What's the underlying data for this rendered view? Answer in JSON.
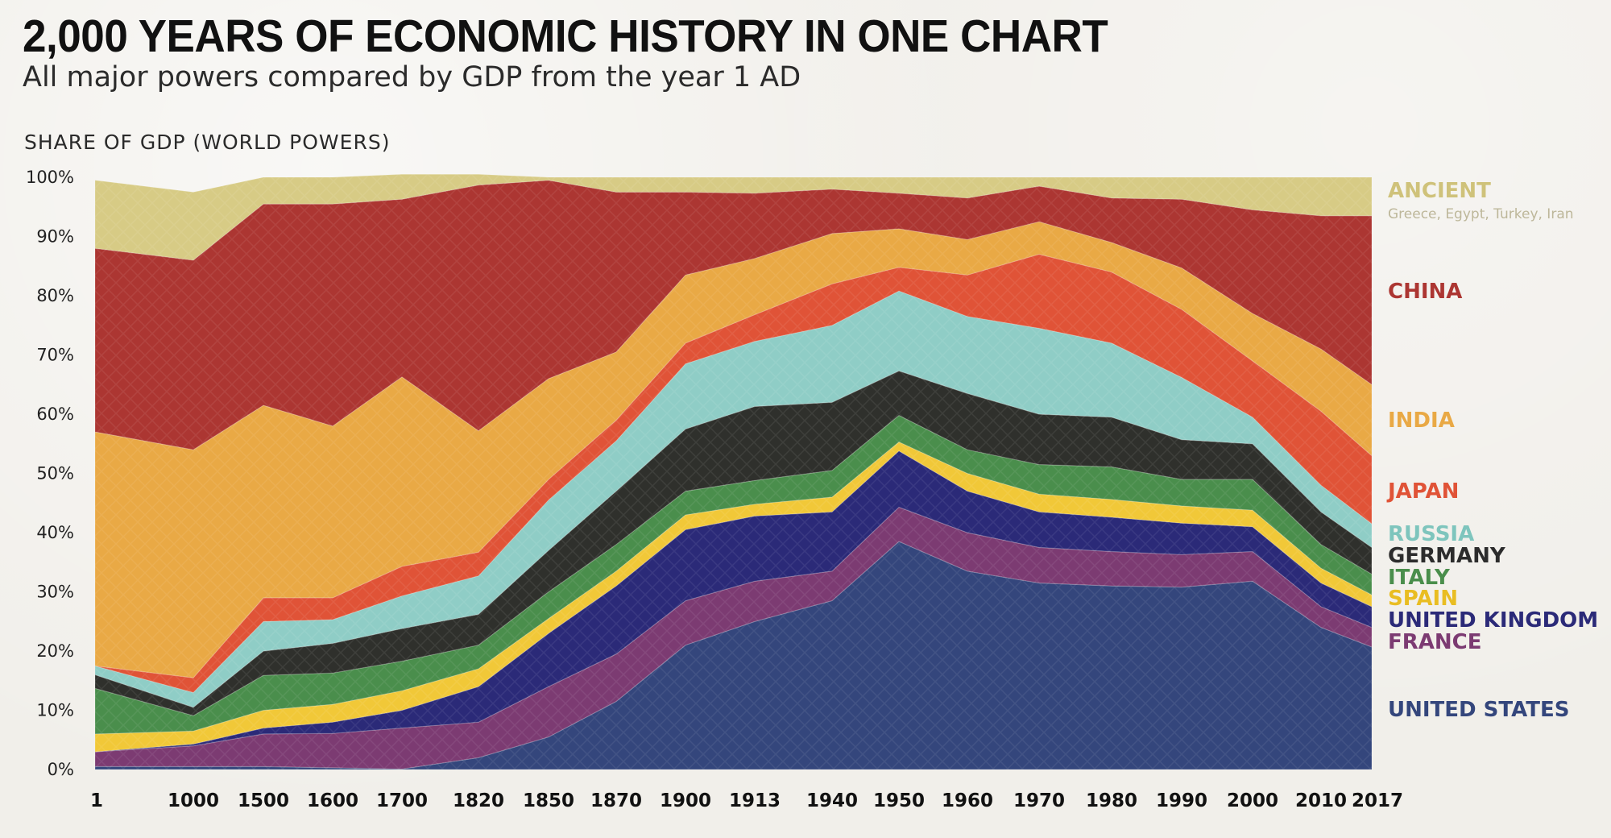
{
  "title": "2,000 YEARS OF ECONOMIC HISTORY IN ONE CHART",
  "subtitle": "All major powers compared by GDP from the year 1 AD",
  "chart_data": {
    "type": "area",
    "stacked": true,
    "ylabel": "SHARE OF GDP (WORLD POWERS)",
    "ylim": [
      0,
      100
    ],
    "y_ticks": [
      "0%",
      "10%",
      "20%",
      "30%",
      "40%",
      "50%",
      "60%",
      "70%",
      "80%",
      "90%",
      "100%"
    ],
    "categories": [
      "1",
      "1000",
      "1500",
      "1600",
      "1700",
      "1820",
      "1850",
      "1870",
      "1900",
      "1913",
      "1940",
      "1950",
      "1960",
      "1970",
      "1980",
      "1990",
      "2000",
      "2010",
      "2017"
    ],
    "grid": false,
    "legend_placement": "right",
    "series": [
      {
        "name": "UNITED STATES",
        "color": "#34467c",
        "values": [
          0.5,
          0.5,
          0.5,
          0.3,
          0.1,
          2.0,
          5.5,
          11.5,
          21.0,
          25.0,
          28.5,
          38.5,
          33.5,
          31.5,
          31.0,
          30.8,
          31.8,
          24.0,
          20.7
        ]
      },
      {
        "name": "FRANCE",
        "color": "#7c3b72",
        "values": [
          2.5,
          3.5,
          5.5,
          5.8,
          6.9,
          6.0,
          8.5,
          8.0,
          7.5,
          6.8,
          5.0,
          5.8,
          6.5,
          6.0,
          5.8,
          5.5,
          5.0,
          3.5,
          3.3
        ]
      },
      {
        "name": "UNITED KINGDOM",
        "color": "#2b2a78",
        "values": [
          0.0,
          0.3,
          1.0,
          1.9,
          3.0,
          6.0,
          9.0,
          11.5,
          12.0,
          11.0,
          10.0,
          9.5,
          7.0,
          6.0,
          5.8,
          5.3,
          4.2,
          4.0,
          3.5
        ]
      },
      {
        "name": "SPAIN",
        "color": "#f1c838",
        "values": [
          3.0,
          2.2,
          3.0,
          3.0,
          3.3,
          3.0,
          2.5,
          2.5,
          2.5,
          2.0,
          2.5,
          1.5,
          3.0,
          3.0,
          3.0,
          2.9,
          2.8,
          2.5,
          2.0
        ]
      },
      {
        "name": "ITALY",
        "color": "#4a8e4c",
        "values": [
          7.7,
          2.6,
          5.9,
          5.3,
          5.0,
          4.0,
          4.5,
          4.5,
          4.0,
          4.0,
          4.5,
          4.5,
          4.0,
          5.0,
          5.5,
          4.5,
          5.2,
          4.0,
          3.5
        ]
      },
      {
        "name": "GERMANY",
        "color": "#2f302c",
        "values": [
          2.3,
          1.4,
          4.1,
          5.0,
          5.5,
          5.2,
          7.0,
          9.0,
          10.5,
          12.5,
          11.5,
          7.5,
          9.5,
          8.5,
          8.4,
          6.7,
          6.0,
          5.5,
          4.5
        ]
      },
      {
        "name": "RUSSIA",
        "color": "#8fcdc6",
        "values": [
          1.5,
          2.5,
          5.0,
          4.0,
          5.5,
          6.5,
          8.5,
          8.5,
          11.0,
          11.0,
          13.0,
          13.5,
          13.0,
          14.5,
          12.5,
          10.5,
          4.5,
          4.5,
          4.0
        ]
      },
      {
        "name": "JAPAN",
        "color": "#e05337",
        "values": [
          0.0,
          2.5,
          4.0,
          3.7,
          5.0,
          4.0,
          3.5,
          3.5,
          3.5,
          4.5,
          7.0,
          4.0,
          7.0,
          12.5,
          12.0,
          11.5,
          9.5,
          12.5,
          11.5
        ]
      },
      {
        "name": "INDIA",
        "color": "#e9a945",
        "values": [
          39.5,
          38.5,
          32.5,
          29.0,
          32.0,
          20.5,
          17.0,
          11.5,
          11.5,
          9.5,
          8.5,
          6.5,
          6.0,
          5.5,
          5.0,
          7.0,
          8.0,
          10.5,
          12.0
        ]
      },
      {
        "name": "CHINA",
        "color": "#ac3632",
        "values": [
          31.0,
          32.0,
          34.0,
          37.5,
          30.0,
          41.5,
          33.5,
          27.0,
          14.0,
          11.0,
          7.5,
          6.0,
          7.0,
          6.0,
          7.5,
          11.6,
          17.5,
          22.5,
          28.5
        ]
      },
      {
        "name": "ANCIENT",
        "subtitle": "Greece, Egypt, Turkey, Iran",
        "color": "#d7cb85",
        "values": [
          11.5,
          11.5,
          4.5,
          4.5,
          4.2,
          1.8,
          0.5,
          2.5,
          2.5,
          2.7,
          2.0,
          2.7,
          3.5,
          1.5,
          3.5,
          3.7,
          5.5,
          6.5,
          6.5
        ]
      }
    ]
  }
}
